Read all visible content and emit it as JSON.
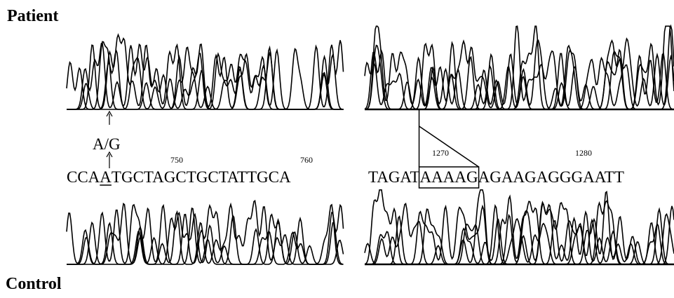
{
  "labels": {
    "patient": "Patient",
    "control": "Control",
    "variant": "A/G"
  },
  "left": {
    "sequence": [
      "CCA",
      "A",
      "TGCTAGCTGCTATTGCA"
    ],
    "positions": [
      "750",
      "760"
    ]
  },
  "right": {
    "sequence": [
      "TAGAT",
      "AAAAG",
      "AGAAGAGGGAATT"
    ],
    "positions": [
      "1270",
      "1280"
    ]
  }
}
